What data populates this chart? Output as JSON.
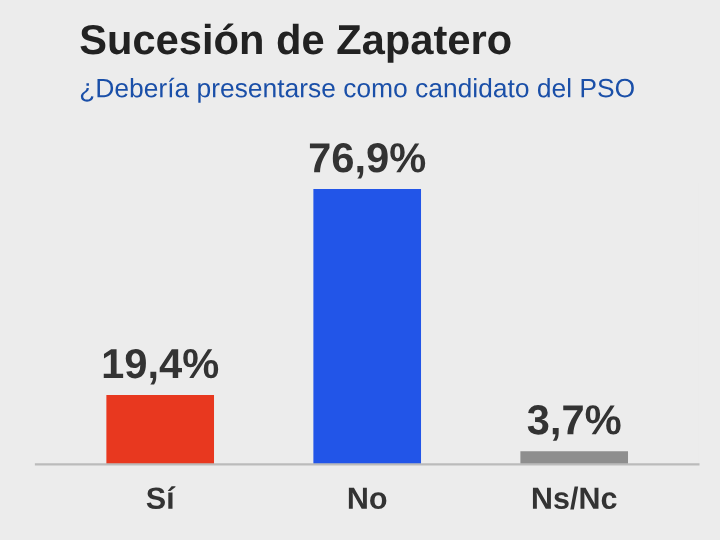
{
  "chart_data": {
    "type": "bar",
    "title": "Sucesión de Zapatero",
    "subtitle": "¿Debería presentarse como candidato del PSO",
    "categories": [
      "Sí",
      "No",
      "Ns/Nc"
    ],
    "values": [
      19.4,
      76.9,
      3.7
    ],
    "colors": [
      "#e8381f",
      "#2255e8",
      "#8e8e8e"
    ],
    "value_labels": [
      "19,4%",
      "76,9%",
      "3,7%"
    ],
    "tick_labels": "x",
    "grid": false
  }
}
